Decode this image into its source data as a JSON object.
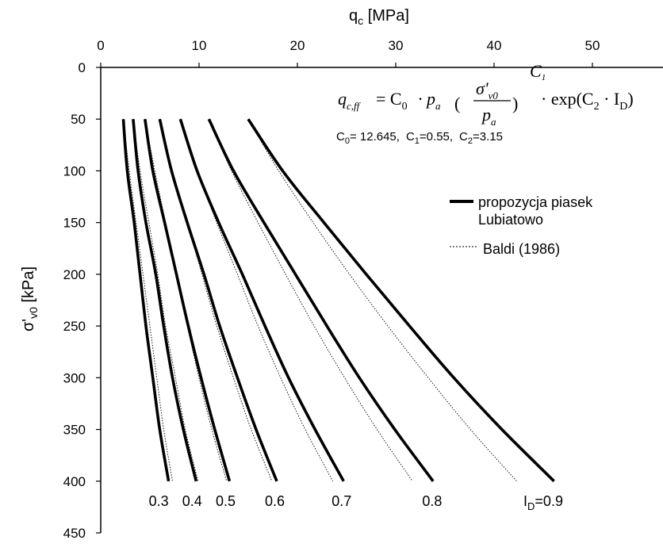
{
  "chart_data": {
    "type": "line",
    "xlabel_main": "q",
    "xlabel_sub": "c",
    "xlabel_unit": " [MPa]",
    "ylabel_main": "σ'",
    "ylabel_sub": "v0",
    "ylabel_unit": " [kPa]",
    "x_axis_position": "top",
    "y_axis_inverted": true,
    "xlim": [
      0,
      55
    ],
    "ylim": [
      0,
      450
    ],
    "xticks": [
      "0",
      "10",
      "20",
      "30",
      "40",
      "50"
    ],
    "yticks": [
      "0",
      "50",
      "100",
      "150",
      "200",
      "250",
      "300",
      "350",
      "400",
      "450"
    ],
    "grid": false,
    "legend": {
      "placement": "right",
      "items": [
        {
          "line1": "propozycja piasek",
          "line2": "Lubiatowo",
          "style": "thick-solid"
        },
        {
          "line1": "Baldi (1986)",
          "line2": "",
          "style": "thin-dotted"
        }
      ]
    },
    "equation": {
      "lhs": "q",
      "lhs_sub": "c,ff",
      "rhs_a": "= C",
      "rhs_a_sub": "0",
      "rhs_b": "· p",
      "rhs_b_sub": "a",
      "frac_num": "σ'",
      "frac_num_sub": "v0",
      "frac_den": "p",
      "frac_den_sub": "a",
      "exponent": "C",
      "exponent_sub": "1",
      "tail": "· exp(C",
      "tail_sub": "2",
      "tail_mid": " · I",
      "tail_mid_sub": "D",
      "tail_end": ")"
    },
    "coefficients": {
      "c0_name": "C",
      "c0_sub": "0",
      "c0_val": "= 12.645,",
      "c1_name": "C",
      "c1_sub": "1",
      "c1_val": "=0.55,",
      "c2_name": "C",
      "c2_sub": "2",
      "c2_val": "=3.15"
    },
    "series_solid": [
      {
        "label": "0.3",
        "points": [
          [
            2.3,
            50
          ],
          [
            2.7,
            100
          ],
          [
            3.4,
            150
          ],
          [
            4.0,
            200
          ],
          [
            4.6,
            250
          ],
          [
            5.3,
            300
          ],
          [
            6.0,
            350
          ],
          [
            6.9,
            400
          ]
        ]
      },
      {
        "label": "0.4",
        "points": [
          [
            3.3,
            50
          ],
          [
            3.8,
            100
          ],
          [
            4.6,
            150
          ],
          [
            5.6,
            200
          ],
          [
            6.4,
            250
          ],
          [
            7.3,
            300
          ],
          [
            8.4,
            350
          ],
          [
            9.7,
            400
          ]
        ]
      },
      {
        "label": "0.5",
        "points": [
          [
            4.5,
            50
          ],
          [
            5.3,
            100
          ],
          [
            6.5,
            150
          ],
          [
            7.7,
            200
          ],
          [
            8.9,
            250
          ],
          [
            10.2,
            300
          ],
          [
            11.6,
            350
          ],
          [
            13.1,
            400
          ]
        ]
      },
      {
        "label": "0.6",
        "points": [
          [
            6.0,
            50
          ],
          [
            7.2,
            100
          ],
          [
            8.8,
            150
          ],
          [
            10.5,
            200
          ],
          [
            12.1,
            250
          ],
          [
            13.9,
            300
          ],
          [
            15.8,
            350
          ],
          [
            17.9,
            400
          ]
        ]
      },
      {
        "label": "0.7",
        "points": [
          [
            8.1,
            50
          ],
          [
            9.8,
            100
          ],
          [
            12.0,
            150
          ],
          [
            14.4,
            200
          ],
          [
            16.7,
            250
          ],
          [
            19.1,
            300
          ],
          [
            21.8,
            350
          ],
          [
            24.7,
            400
          ]
        ]
      },
      {
        "label": "0.8",
        "points": [
          [
            11.0,
            50
          ],
          [
            13.5,
            100
          ],
          [
            16.6,
            150
          ],
          [
            19.8,
            200
          ],
          [
            23.0,
            250
          ],
          [
            26.3,
            300
          ],
          [
            29.9,
            350
          ],
          [
            33.8,
            400
          ]
        ]
      },
      {
        "label": "ID=0.9",
        "points": [
          [
            15.0,
            50
          ],
          [
            18.5,
            100
          ],
          [
            22.7,
            150
          ],
          [
            27.0,
            200
          ],
          [
            31.4,
            250
          ],
          [
            35.9,
            300
          ],
          [
            40.8,
            350
          ],
          [
            46.1,
            400
          ]
        ]
      }
    ],
    "series_dotted": [
      {
        "points": [
          [
            2.3,
            50
          ],
          [
            2.9,
            100
          ],
          [
            3.6,
            150
          ],
          [
            4.3,
            200
          ],
          [
            5.0,
            250
          ],
          [
            5.7,
            300
          ],
          [
            6.4,
            350
          ],
          [
            7.3,
            400
          ]
        ]
      },
      {
        "points": [
          [
            3.3,
            50
          ],
          [
            4.0,
            100
          ],
          [
            4.9,
            150
          ],
          [
            5.8,
            200
          ],
          [
            6.6,
            250
          ],
          [
            7.6,
            300
          ],
          [
            8.6,
            350
          ],
          [
            9.9,
            400
          ]
        ]
      },
      {
        "points": [
          [
            4.5,
            50
          ],
          [
            5.5,
            100
          ],
          [
            6.6,
            150
          ],
          [
            7.7,
            200
          ],
          [
            8.8,
            250
          ],
          [
            10.0,
            300
          ],
          [
            11.3,
            350
          ],
          [
            12.8,
            400
          ]
        ]
      },
      {
        "points": [
          [
            6.0,
            50
          ],
          [
            7.3,
            100
          ],
          [
            8.8,
            150
          ],
          [
            10.3,
            200
          ],
          [
            11.8,
            250
          ],
          [
            13.5,
            300
          ],
          [
            15.3,
            350
          ],
          [
            17.4,
            400
          ]
        ]
      },
      {
        "points": [
          [
            8.1,
            50
          ],
          [
            9.8,
            100
          ],
          [
            11.8,
            150
          ],
          [
            13.9,
            200
          ],
          [
            16.0,
            250
          ],
          [
            18.3,
            300
          ],
          [
            20.8,
            350
          ],
          [
            23.6,
            400
          ]
        ]
      },
      {
        "points": [
          [
            11.0,
            50
          ],
          [
            13.3,
            100
          ],
          [
            16.0,
            150
          ],
          [
            18.8,
            200
          ],
          [
            21.7,
            250
          ],
          [
            24.8,
            300
          ],
          [
            28.1,
            350
          ],
          [
            31.7,
            400
          ]
        ]
      },
      {
        "points": [
          [
            15.0,
            50
          ],
          [
            18.1,
            100
          ],
          [
            21.6,
            150
          ],
          [
            25.3,
            200
          ],
          [
            29.2,
            250
          ],
          [
            33.3,
            300
          ],
          [
            37.6,
            350
          ],
          [
            42.3,
            400
          ]
        ]
      }
    ],
    "id_labels": [
      {
        "text": "0.3",
        "x": 5.9
      },
      {
        "text": "0.4",
        "x": 9.3
      },
      {
        "text": "0.5",
        "x": 12.7
      },
      {
        "text": "0.6",
        "x": 17.7
      },
      {
        "text": "0.7",
        "x": 24.5
      },
      {
        "text": "0.8",
        "x": 33.7
      },
      {
        "text": "I",
        "sub": "D",
        "rest": "=0.9",
        "x": 45.0
      }
    ]
  }
}
